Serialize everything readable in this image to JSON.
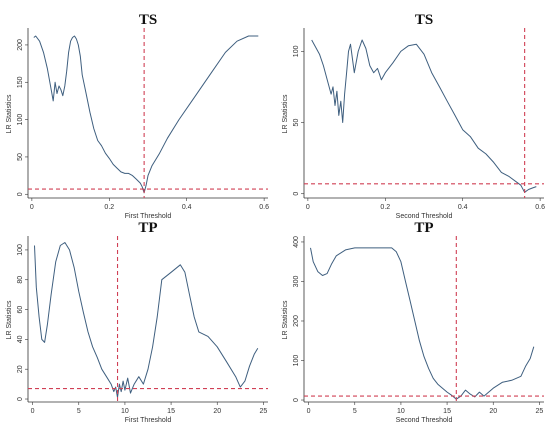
{
  "colors": {
    "series": "#3f5f7f",
    "critical": "#d04055",
    "threshold": "#d04055",
    "axis": "#333333"
  },
  "chart_data": [
    {
      "type": "line",
      "title": "TS",
      "xlabel": "First Threshold",
      "ylabel": "LR Statistics",
      "xlim": [
        -0.01,
        0.61
      ],
      "ylim": [
        -5,
        220
      ],
      "xticks": [
        0,
        0.2,
        0.4,
        0.6
      ],
      "xtick_labels": [
        "0",
        "0.2",
        "0.4",
        "0.6"
      ],
      "yticks": [
        0,
        50,
        100,
        150,
        200
      ],
      "ytick_labels": [
        "0",
        "50",
        "100",
        "150",
        "200"
      ],
      "critical_value": 7,
      "threshold_estimate": 0.29,
      "series": [
        {
          "x": [
            0.005,
            0.01,
            0.02,
            0.03,
            0.04,
            0.05,
            0.055,
            0.06,
            0.065,
            0.07,
            0.075,
            0.08,
            0.085,
            0.09,
            0.095,
            0.1,
            0.105,
            0.11,
            0.115,
            0.12,
            0.125,
            0.13,
            0.14,
            0.15,
            0.16,
            0.17,
            0.18,
            0.19,
            0.2,
            0.21,
            0.22,
            0.23,
            0.24,
            0.25,
            0.26,
            0.27,
            0.28,
            0.285,
            0.29,
            0.295,
            0.3,
            0.31,
            0.33,
            0.35,
            0.38,
            0.42,
            0.46,
            0.5,
            0.53,
            0.56,
            0.585
          ],
          "y": [
            210,
            212,
            205,
            190,
            168,
            140,
            125,
            150,
            135,
            145,
            140,
            132,
            145,
            165,
            190,
            205,
            210,
            212,
            208,
            200,
            185,
            160,
            135,
            110,
            88,
            72,
            65,
            55,
            48,
            40,
            35,
            30,
            28,
            28,
            25,
            20,
            15,
            10,
            2,
            12,
            25,
            38,
            55,
            75,
            100,
            130,
            160,
            190,
            205,
            212,
            212
          ]
        }
      ]
    },
    {
      "type": "line",
      "title": "TS",
      "xlabel": "Second Threshold",
      "ylabel": "LR Statistics",
      "xlim": [
        -0.01,
        0.61
      ],
      "ylim": [
        -3,
        115
      ],
      "xticks": [
        0,
        0.2,
        0.4,
        0.6
      ],
      "xtick_labels": [
        "0",
        "0.2",
        "0.4",
        "0.6"
      ],
      "yticks": [
        0,
        50,
        100
      ],
      "ytick_labels": [
        "0",
        "50",
        "100"
      ],
      "critical_value": 7,
      "threshold_estimate": 0.56,
      "series": [
        {
          "x": [
            0.01,
            0.02,
            0.03,
            0.04,
            0.05,
            0.06,
            0.065,
            0.07,
            0.075,
            0.08,
            0.085,
            0.09,
            0.095,
            0.1,
            0.105,
            0.11,
            0.115,
            0.12,
            0.13,
            0.14,
            0.15,
            0.16,
            0.17,
            0.18,
            0.19,
            0.2,
            0.22,
            0.24,
            0.26,
            0.28,
            0.3,
            0.32,
            0.34,
            0.36,
            0.38,
            0.4,
            0.42,
            0.44,
            0.46,
            0.48,
            0.5,
            0.52,
            0.54,
            0.55,
            0.56,
            0.57,
            0.58,
            0.59
          ],
          "y": [
            108,
            103,
            98,
            90,
            80,
            70,
            75,
            62,
            72,
            55,
            65,
            50,
            70,
            85,
            100,
            105,
            95,
            85,
            100,
            108,
            102,
            90,
            85,
            88,
            80,
            85,
            92,
            100,
            104,
            105,
            98,
            85,
            75,
            65,
            55,
            45,
            40,
            32,
            28,
            22,
            15,
            12,
            8,
            6,
            1,
            3,
            4,
            5
          ]
        }
      ]
    },
    {
      "type": "line",
      "title": "TP",
      "xlabel": "First Threshold",
      "ylabel": "LR Statistics",
      "xlim": [
        -0.5,
        25.5
      ],
      "ylim": [
        -2,
        108
      ],
      "xticks": [
        0,
        5,
        10,
        15,
        20,
        25
      ],
      "xtick_labels": [
        "0",
        "5",
        "10",
        "15",
        "20",
        "25"
      ],
      "yticks": [
        0,
        20,
        40,
        60,
        80,
        100
      ],
      "ytick_labels": [
        "0",
        "20",
        "40",
        "60",
        "80",
        "100"
      ],
      "critical_value": 7,
      "threshold_estimate": 9.2,
      "series": [
        {
          "x": [
            0.2,
            0.4,
            0.7,
            1.0,
            1.3,
            1.6,
            2.0,
            2.5,
            3.0,
            3.5,
            4.0,
            4.5,
            5.0,
            5.5,
            6.0,
            6.5,
            7.0,
            7.5,
            8.0,
            8.5,
            8.8,
            9.0,
            9.2,
            9.4,
            9.6,
            9.8,
            10.0,
            10.3,
            10.6,
            11.0,
            11.5,
            12.0,
            12.5,
            13.0,
            13.5,
            14.0,
            15.0,
            16.0,
            16.5,
            17.0,
            17.5,
            18.0,
            19.0,
            20.0,
            21.0,
            22.0,
            22.5,
            23.0,
            23.5,
            24.0,
            24.4
          ],
          "y": [
            103,
            75,
            55,
            40,
            38,
            50,
            70,
            92,
            103,
            105,
            100,
            88,
            72,
            58,
            45,
            35,
            28,
            20,
            15,
            10,
            5,
            8,
            1,
            10,
            5,
            12,
            6,
            14,
            4,
            10,
            15,
            10,
            20,
            35,
            55,
            80,
            85,
            90,
            85,
            70,
            55,
            45,
            42,
            35,
            25,
            15,
            8,
            12,
            22,
            30,
            34
          ]
        }
      ]
    },
    {
      "type": "line",
      "title": "TP",
      "xlabel": "Second Threshold",
      "ylabel": "LR Statistics",
      "xlim": [
        -0.5,
        25.5
      ],
      "ylim": [
        -5,
        410
      ],
      "xticks": [
        0,
        5,
        10,
        15,
        20,
        25
      ],
      "xtick_labels": [
        "0",
        "5",
        "10",
        "15",
        "20",
        "25"
      ],
      "yticks": [
        0,
        100,
        200,
        300,
        400
      ],
      "ytick_labels": [
        "0",
        "100",
        "200",
        "300",
        "400"
      ],
      "critical_value": 10,
      "threshold_estimate": 16,
      "series": [
        {
          "x": [
            0.2,
            0.5,
            1.0,
            1.5,
            2.0,
            2.5,
            3.0,
            4.0,
            5.0,
            6.0,
            7.0,
            8.0,
            9.0,
            9.5,
            10.0,
            10.5,
            11.0,
            11.5,
            12.0,
            12.5,
            13.0,
            13.5,
            14.0,
            14.5,
            15.0,
            15.5,
            16.0,
            16.5,
            17.0,
            17.5,
            18.0,
            18.5,
            19.0,
            20.0,
            21.0,
            22.0,
            23.0,
            23.5,
            24.0,
            24.4
          ],
          "y": [
            385,
            350,
            325,
            315,
            320,
            345,
            365,
            380,
            385,
            385,
            385,
            385,
            385,
            375,
            350,
            300,
            250,
            200,
            150,
            110,
            80,
            55,
            40,
            30,
            20,
            12,
            2,
            10,
            25,
            15,
            8,
            20,
            10,
            30,
            45,
            50,
            60,
            85,
            105,
            135
          ]
        }
      ]
    }
  ]
}
